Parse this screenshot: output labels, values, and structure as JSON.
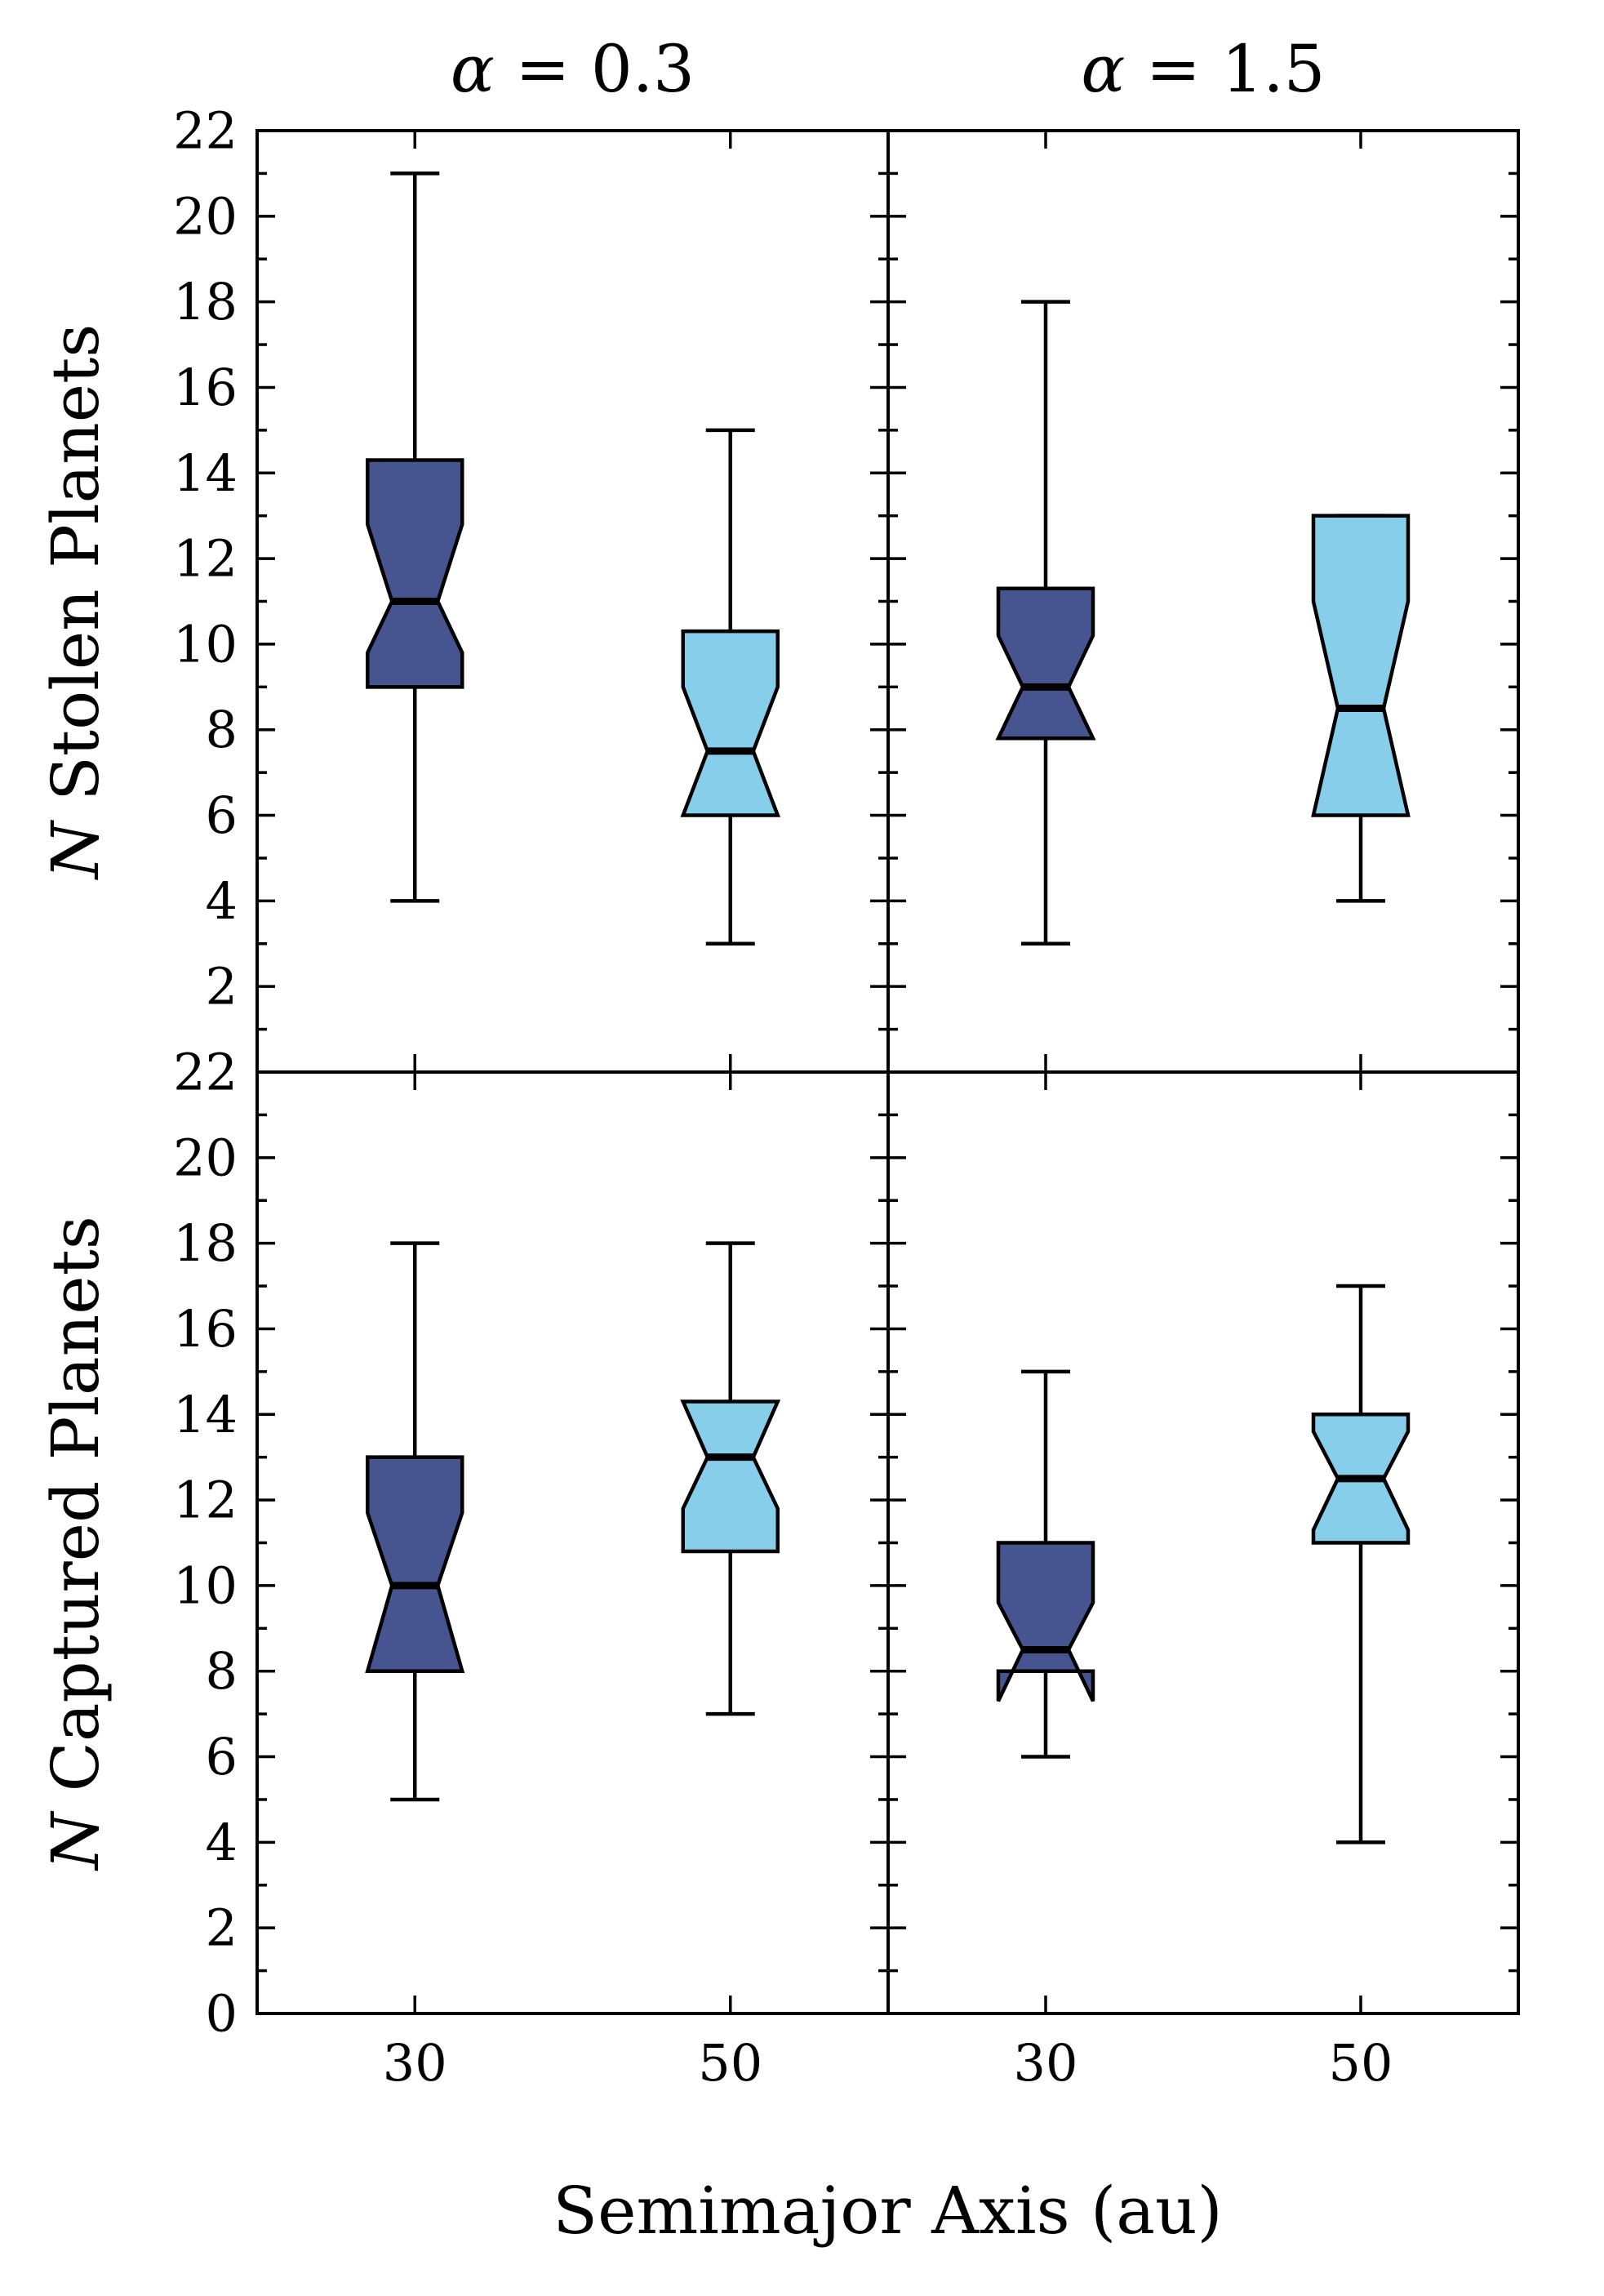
{
  "chart_data": {
    "type": "boxplot",
    "xlabel": "Semimajor Axis (au)",
    "colors": {
      "a30": "#46558f",
      "a50": "#87ceeb",
      "outline": "#000000"
    },
    "columns": [
      {
        "title": "α = 0.3",
        "title_symbol": "α",
        "title_rest": " = 0.3"
      },
      {
        "title": "α = 1.5",
        "title_symbol": "α",
        "title_rest": " = 1.5"
      }
    ],
    "x_categories": [
      "30",
      "50"
    ],
    "panels": [
      {
        "row": 0,
        "col": 0,
        "ylabel": "N Stolen Planets",
        "ylabel_symbol": "N",
        "ylabel_rest": " Stolen Planets",
        "ylim": [
          0,
          22
        ],
        "yticks": [
          2,
          4,
          6,
          8,
          10,
          12,
          14,
          16,
          18,
          20,
          22
        ],
        "boxes": [
          {
            "x": "30",
            "whislo": 4,
            "q1": 9,
            "med": 11,
            "q3": 14.3,
            "whishi": 21,
            "notch_lo": 9.8,
            "notch_hi": 12.8
          },
          {
            "x": "50",
            "whislo": 3,
            "q1": 6,
            "med": 7.5,
            "q3": 10.3,
            "whishi": 15,
            "notch_lo": 6.0,
            "notch_hi": 9.0
          }
        ]
      },
      {
        "row": 0,
        "col": 1,
        "ylabel": "",
        "ylim": [
          0,
          22
        ],
        "yticks": [],
        "boxes": [
          {
            "x": "30",
            "whislo": 3,
            "q1": 7.8,
            "med": 9,
            "q3": 11.3,
            "whishi": 18,
            "notch_lo": 7.8,
            "notch_hi": 10.2
          },
          {
            "x": "50",
            "whislo": 4,
            "q1": 6,
            "med": 8.5,
            "q3": 13,
            "whishi": 13,
            "notch_lo": 6.0,
            "notch_hi": 11.0
          }
        ]
      },
      {
        "row": 1,
        "col": 0,
        "ylabel": "N Captured Planets",
        "ylabel_symbol": "N",
        "ylabel_rest": " Captured Planets",
        "ylim": [
          0,
          22
        ],
        "yticks": [
          0,
          2,
          4,
          6,
          8,
          10,
          12,
          14,
          16,
          18,
          20,
          22
        ],
        "boxes": [
          {
            "x": "30",
            "whislo": 5,
            "q1": 8,
            "med": 10,
            "q3": 13,
            "whishi": 18,
            "notch_lo": 8.0,
            "notch_hi": 11.7
          },
          {
            "x": "50",
            "whislo": 7,
            "q1": 10.8,
            "med": 13,
            "q3": 14.3,
            "whishi": 18,
            "notch_lo": 11.8,
            "notch_hi": 14.3
          }
        ]
      },
      {
        "row": 1,
        "col": 1,
        "ylabel": "",
        "ylim": [
          0,
          22
        ],
        "yticks": [],
        "boxes": [
          {
            "x": "30",
            "whislo": 6,
            "q1": 8,
            "med": 8.5,
            "q3": 11,
            "whishi": 15,
            "notch_lo": 7.3,
            "notch_hi": 9.6
          },
          {
            "x": "50",
            "whislo": 4,
            "q1": 11,
            "med": 12.5,
            "q3": 14,
            "whishi": 17,
            "notch_lo": 11.3,
            "notch_hi": 13.6
          }
        ]
      }
    ]
  }
}
